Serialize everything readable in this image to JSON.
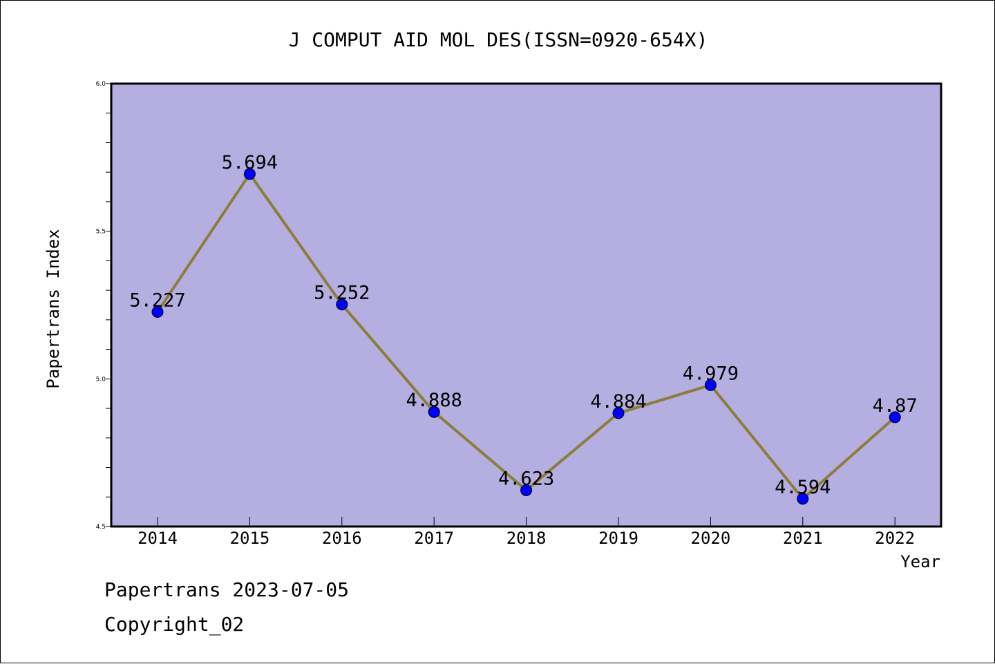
{
  "chart_data": {
    "type": "line",
    "title": "J COMPUT AID MOL DES(ISSN=0920-654X)",
    "xlabel": "Year",
    "ylabel": "Papertrans Index",
    "categories": [
      "2014",
      "2015",
      "2016",
      "2017",
      "2018",
      "2019",
      "2020",
      "2021",
      "2022"
    ],
    "values": [
      5.227,
      5.694,
      5.252,
      4.888,
      4.623,
      4.884,
      4.979,
      4.594,
      4.87
    ],
    "data_labels": [
      "5.227",
      "5.694",
      "5.252",
      "4.888",
      "4.623",
      "4.884",
      "4.979",
      "4.594",
      "4.87"
    ],
    "ylim": [
      4.5,
      6.0
    ],
    "y_ticks": [
      "4.5",
      "5.0",
      "5.5",
      "6.0"
    ],
    "grid": false,
    "colors": {
      "plot_background": "#b4aee1",
      "line": "#8b7d3a",
      "marker": "#0000ff"
    }
  },
  "footer": {
    "line1": "Papertrans 2023-07-05",
    "line2": "Copyright_02"
  }
}
